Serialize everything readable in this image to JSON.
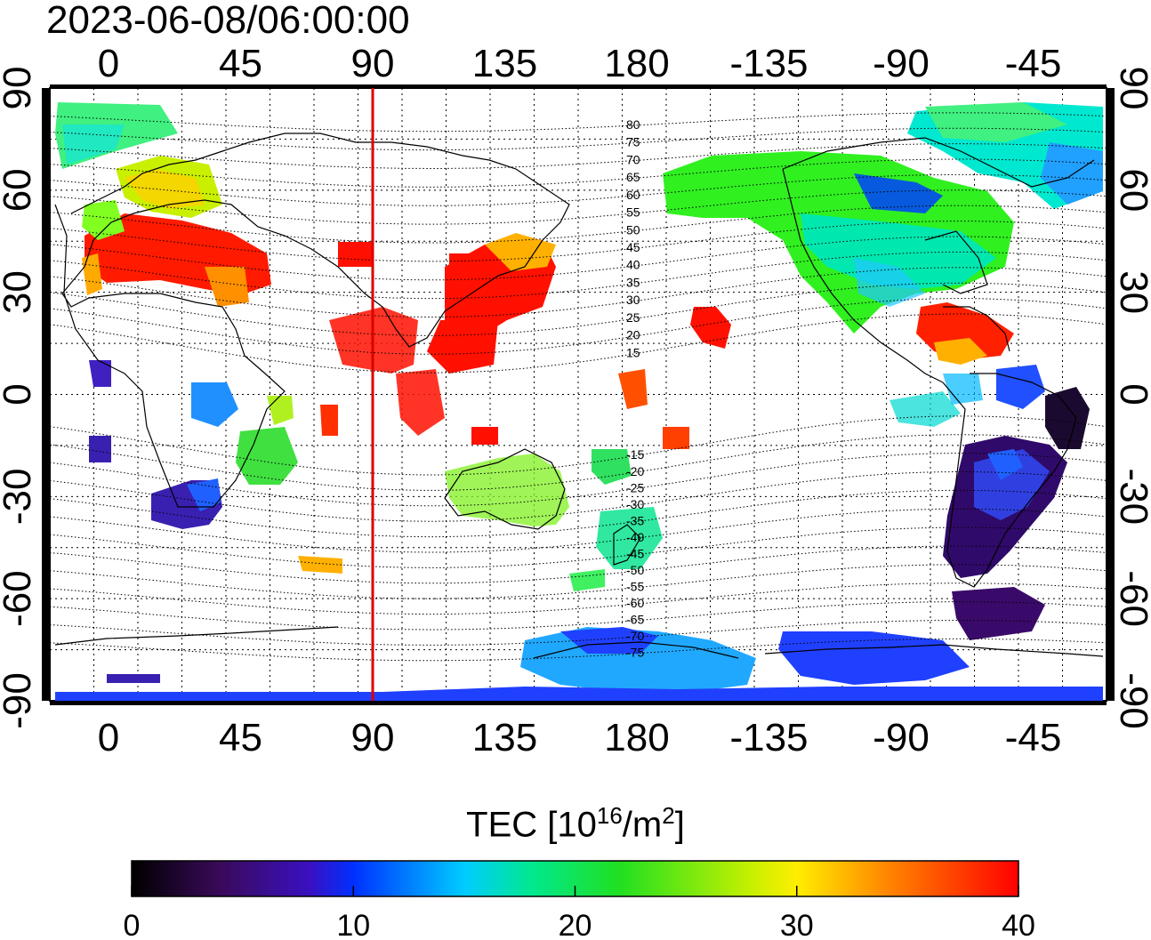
{
  "title": "2023-06-08/06:00:00",
  "map": {
    "top_lon_ticks": [
      "0",
      "45",
      "90",
      "135",
      "180",
      "-135",
      "-90",
      "-45"
    ],
    "bottom_lon_ticks": [
      "0",
      "45",
      "90",
      "135",
      "180",
      "-135",
      "-90",
      "-45"
    ],
    "lat_ticks": [
      "90",
      "60",
      "30",
      "0",
      "-30",
      "-60",
      "-90"
    ],
    "contour_labels": [
      "80",
      "75",
      "70",
      "65",
      "60",
      "55",
      "50",
      "45",
      "40",
      "35",
      "30",
      "25",
      "20",
      "15",
      "-15",
      "-20",
      "-25",
      "-30",
      "-35",
      "-40",
      "-45",
      "-50",
      "-55",
      "-60",
      "-65",
      "-70",
      "-75"
    ],
    "marker_line_lon": 90,
    "marker_color": "#dd0000",
    "grid": true,
    "color_scale": "jet"
  },
  "colorbar": {
    "title_main": "TEC  [10",
    "title_exp": "16",
    "title_mid": "/m",
    "title_sq": "2",
    "title_end": "]",
    "min": 0,
    "max": 40,
    "tick_labels": [
      "0",
      "10",
      "20",
      "30",
      "40"
    ]
  }
}
